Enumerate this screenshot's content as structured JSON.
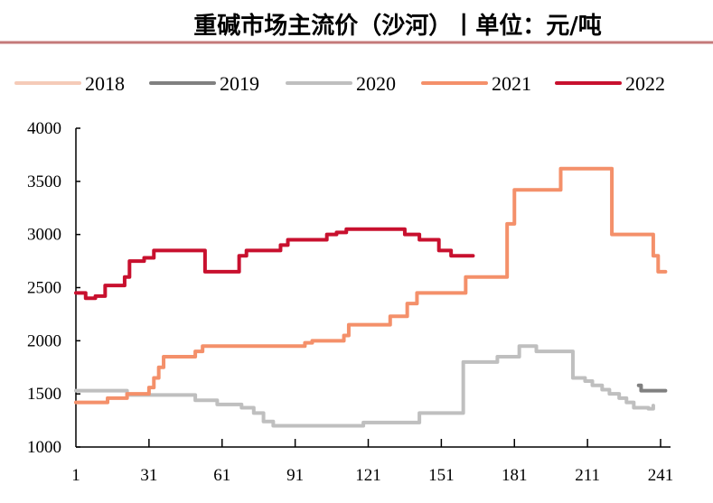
{
  "chart_data": {
    "type": "line",
    "title": "重碱市场主流价（沙河）丨单位：元/吨",
    "xlabel": "",
    "ylabel": "",
    "xlim": [
      1,
      245
    ],
    "ylim": [
      1000,
      4000
    ],
    "x_ticks": [
      "1",
      "31",
      "61",
      "91",
      "121",
      "151",
      "181",
      "211",
      "241"
    ],
    "y_ticks": [
      "1000",
      "1500",
      "2000",
      "2500",
      "3000",
      "3500",
      "4000"
    ],
    "grid": false,
    "legend_position": "top",
    "step": true,
    "series": [
      {
        "name": "2018",
        "color": "#F5CBB8",
        "points": []
      },
      {
        "name": "2019",
        "color": "#808080",
        "points": [
          [
            232,
            1580
          ],
          [
            233,
            1530
          ],
          [
            243,
            1530
          ]
        ]
      },
      {
        "name": "2020",
        "color": "#BFBFBF",
        "points": [
          [
            1,
            1530
          ],
          [
            22,
            1490
          ],
          [
            50,
            1440
          ],
          [
            59,
            1400
          ],
          [
            69,
            1370
          ],
          [
            74,
            1320
          ],
          [
            78,
            1240
          ],
          [
            82,
            1200
          ],
          [
            93,
            1200
          ],
          [
            119,
            1230
          ],
          [
            142,
            1320
          ],
          [
            160,
            1800
          ],
          [
            174,
            1850
          ],
          [
            183,
            1950
          ],
          [
            190,
            1900
          ],
          [
            205,
            1650
          ],
          [
            210,
            1620
          ],
          [
            213,
            1580
          ],
          [
            217,
            1540
          ],
          [
            220,
            1500
          ],
          [
            224,
            1460
          ],
          [
            227,
            1420
          ],
          [
            230,
            1370
          ],
          [
            236,
            1360
          ],
          [
            238,
            1390
          ]
        ]
      },
      {
        "name": "2021",
        "color": "#F4906A",
        "points": [
          [
            1,
            1420
          ],
          [
            14,
            1460
          ],
          [
            22,
            1500
          ],
          [
            31,
            1560
          ],
          [
            33,
            1650
          ],
          [
            35,
            1750
          ],
          [
            37,
            1850
          ],
          [
            50,
            1900
          ],
          [
            53,
            1950
          ],
          [
            95,
            1980
          ],
          [
            98,
            2000
          ],
          [
            111,
            2050
          ],
          [
            113,
            2150
          ],
          [
            130,
            2230
          ],
          [
            137,
            2350
          ],
          [
            141,
            2450
          ],
          [
            161,
            2600
          ],
          [
            178,
            3100
          ],
          [
            181,
            3420
          ],
          [
            200,
            3620
          ],
          [
            221,
            3000
          ],
          [
            238,
            2800
          ],
          [
            240,
            2650
          ],
          [
            243,
            2650
          ]
        ]
      },
      {
        "name": "2022",
        "color": "#C8102E",
        "points": [
          [
            1,
            2450
          ],
          [
            5,
            2400
          ],
          [
            9,
            2420
          ],
          [
            13,
            2520
          ],
          [
            21,
            2600
          ],
          [
            23,
            2750
          ],
          [
            29,
            2780
          ],
          [
            33,
            2850
          ],
          [
            54,
            2650
          ],
          [
            68,
            2800
          ],
          [
            71,
            2850
          ],
          [
            85,
            2900
          ],
          [
            88,
            2950
          ],
          [
            104,
            3000
          ],
          [
            108,
            3020
          ],
          [
            112,
            3050
          ],
          [
            136,
            3000
          ],
          [
            142,
            2950
          ],
          [
            150,
            2850
          ],
          [
            155,
            2800
          ],
          [
            164,
            2800
          ]
        ]
      }
    ]
  }
}
